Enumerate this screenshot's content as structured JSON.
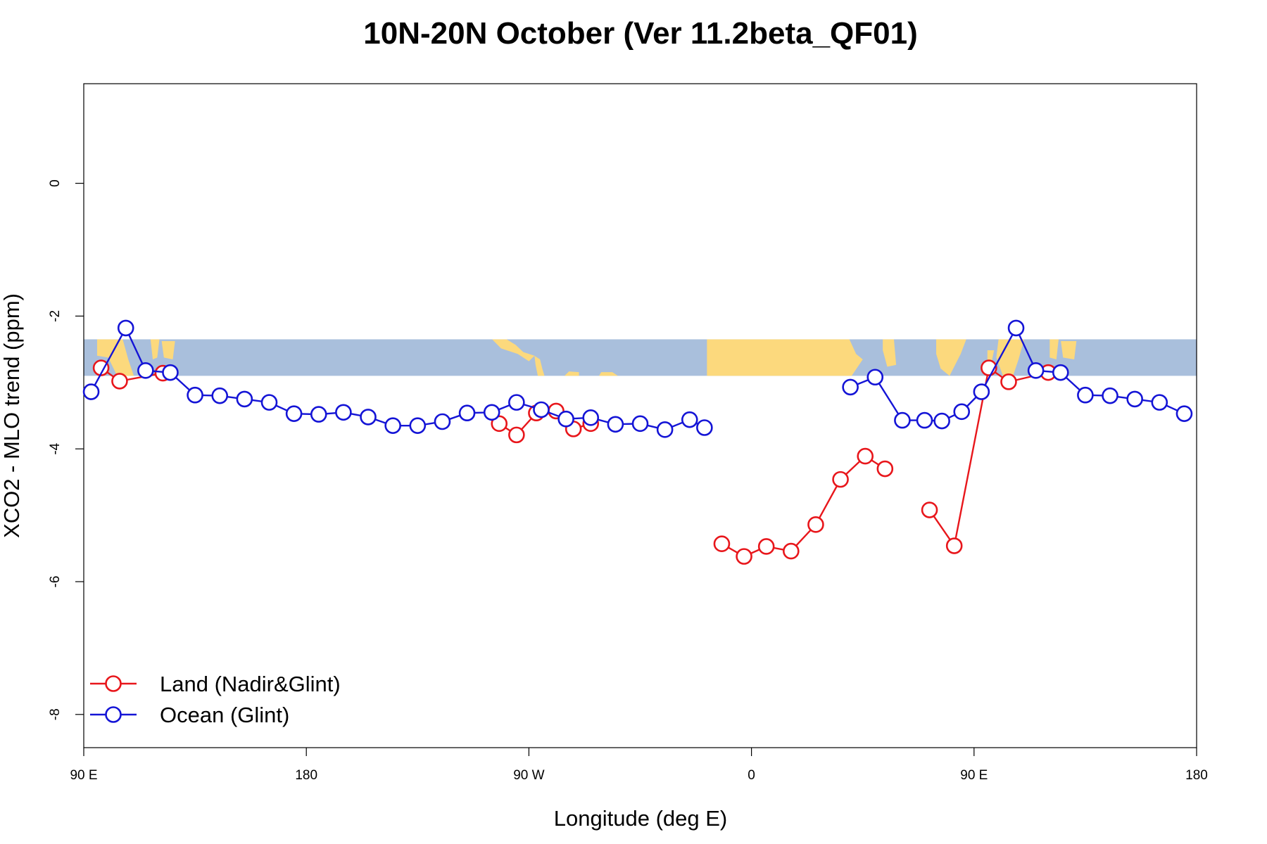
{
  "chart_data": {
    "type": "line",
    "title": "10N-20N October (Ver 11.2beta_QF01)",
    "xlabel": "Longitude (deg E)",
    "ylabel": "XCO2 - MLO trend (ppm)",
    "xlim": [
      90,
      540
    ],
    "ylim": [
      -8.5,
      1.5
    ],
    "x_ticks": [
      {
        "value": 90,
        "label": "90 E"
      },
      {
        "value": 180,
        "label": "180"
      },
      {
        "value": 270,
        "label": "90 W"
      },
      {
        "value": 360,
        "label": "0"
      },
      {
        "value": 450,
        "label": "90 E"
      },
      {
        "value": 540,
        "label": "180"
      }
    ],
    "y_ticks": [
      {
        "value": 0,
        "label": "0"
      },
      {
        "value": -2,
        "label": "-2"
      },
      {
        "value": -4,
        "label": "-4"
      },
      {
        "value": -6,
        "label": "-6"
      },
      {
        "value": -8,
        "label": "-8"
      }
    ],
    "map_band": {
      "ymin": -2.9,
      "ymax": -2.35,
      "ocean_color": "#a9bfdc",
      "land_color": "#fcd97d"
    },
    "legend": {
      "position": "bottom-left"
    },
    "series": [
      {
        "name": "Land (Nadir&Glint)",
        "color": "#e8161b",
        "segments": [
          [
            [
              97,
              -2.78
            ],
            [
              104.5,
              -2.98
            ],
            [
              122,
              -2.86
            ]
          ],
          [
            [
              258,
              -3.62
            ],
            [
              265,
              -3.79
            ],
            [
              273,
              -3.46
            ],
            [
              281,
              -3.43
            ],
            [
              288,
              -3.7
            ],
            [
              295,
              -3.62
            ]
          ],
          [
            [
              348,
              -5.43
            ],
            [
              357,
              -5.62
            ],
            [
              366,
              -5.47
            ],
            [
              376,
              -5.54
            ],
            [
              386,
              -5.14
            ],
            [
              396,
              -4.46
            ],
            [
              406,
              -4.11
            ],
            [
              414,
              -4.3
            ]
          ],
          [
            [
              432,
              -4.92
            ],
            [
              442,
              -5.46
            ],
            [
              456,
              -2.78
            ],
            [
              464,
              -2.99
            ],
            [
              480,
              -2.85
            ]
          ]
        ]
      },
      {
        "name": "Ocean (Glint)",
        "color": "#1414d6",
        "segments": [
          [
            [
              93,
              -3.14
            ],
            [
              107,
              -2.18
            ],
            [
              115,
              -2.82
            ],
            [
              125,
              -2.85
            ],
            [
              135,
              -3.19
            ],
            [
              145,
              -3.2
            ],
            [
              155,
              -3.25
            ],
            [
              165,
              -3.3
            ],
            [
              175,
              -3.47
            ],
            [
              185,
              -3.48
            ],
            [
              195,
              -3.45
            ],
            [
              205,
              -3.52
            ],
            [
              215,
              -3.65
            ],
            [
              225,
              -3.65
            ],
            [
              235,
              -3.59
            ],
            [
              245,
              -3.46
            ],
            [
              255,
              -3.45
            ],
            [
              265,
              -3.3
            ],
            [
              275,
              -3.41
            ],
            [
              285,
              -3.55
            ],
            [
              295,
              -3.53
            ],
            [
              305,
              -3.63
            ],
            [
              315,
              -3.62
            ],
            [
              325,
              -3.71
            ],
            [
              335,
              -3.56
            ],
            [
              341,
              -3.68
            ]
          ],
          [
            [
              400,
              -3.07
            ],
            [
              410,
              -2.92
            ],
            [
              421,
              -3.57
            ],
            [
              430,
              -3.57
            ],
            [
              437,
              -3.58
            ],
            [
              445,
              -3.44
            ],
            [
              453,
              -3.14
            ],
            [
              467,
              -2.18
            ],
            [
              475,
              -2.82
            ],
            [
              485,
              -2.85
            ],
            [
              495,
              -3.19
            ],
            [
              505,
              -3.2
            ],
            [
              515,
              -3.25
            ],
            [
              525,
              -3.3
            ],
            [
              535,
              -3.47
            ]
          ]
        ]
      }
    ]
  }
}
